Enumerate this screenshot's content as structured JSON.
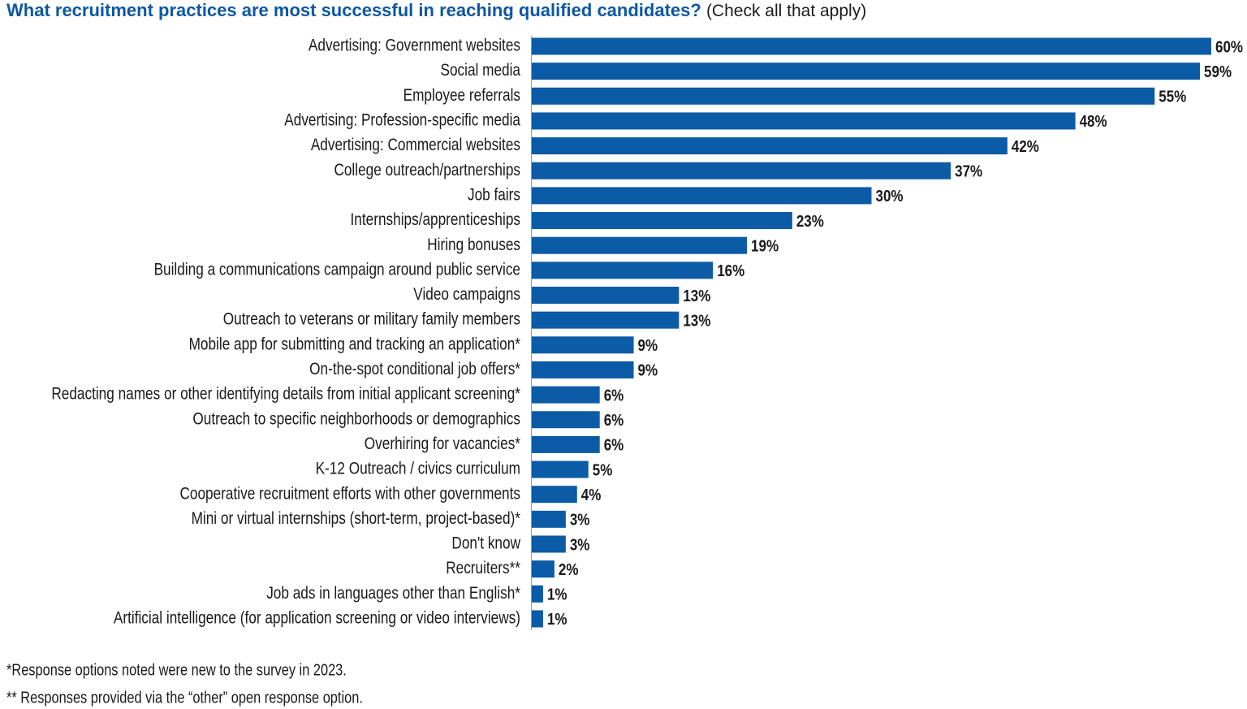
{
  "chart_data": {
    "type": "bar",
    "orientation": "horizontal",
    "title": "What recruitment practices are most successful in reaching qualified candidates?",
    "title_note": "(Check all that apply)",
    "categories": [
      "Advertising: Government websites",
      "Social media",
      "Employee referrals",
      "Advertising: Profession-specific media",
      "Advertising: Commercial websites",
      "College outreach/partnerships",
      "Job fairs",
      "Internships/apprenticeships",
      "Hiring bonuses",
      "Building a communications campaign around public service",
      "Video campaigns",
      "Outreach to veterans or military family members",
      "Mobile app for submitting and tracking an application*",
      "On-the-spot conditional job offers*",
      "Redacting names or other identifying details from initial applicant screening*",
      "Outreach to specific neighborhoods or demographics",
      "Overhiring for vacancies*",
      "K-12 Outreach / civics curriculum",
      "Cooperative recruitment efforts with other governments",
      "Mini or virtual internships (short-term, project-based)*",
      "Don't know",
      "Recruiters**",
      "Job ads in languages other than English*",
      "Artificial intelligence (for application screening or video interviews)"
    ],
    "values": [
      60,
      59,
      55,
      48,
      42,
      37,
      30,
      23,
      19,
      16,
      13,
      13,
      9,
      9,
      6,
      6,
      6,
      5,
      4,
      3,
      3,
      2,
      1,
      1
    ],
    "value_labels": [
      "60%",
      "59%",
      "55%",
      "48%",
      "42%",
      "37%",
      "30%",
      "23%",
      "19%",
      "16%",
      "13%",
      "13%",
      "9%",
      "9%",
      "6%",
      "6%",
      "6%",
      "5%",
      "4%",
      "3%",
      "3%",
      "2%",
      "1%",
      "1%"
    ],
    "color": "#0b5ba6",
    "title_color": "#0d57a3",
    "notes": [
      "*Response options noted were new to the survey in 2023.",
      "** Responses provided via the “other” open response option."
    ]
  }
}
